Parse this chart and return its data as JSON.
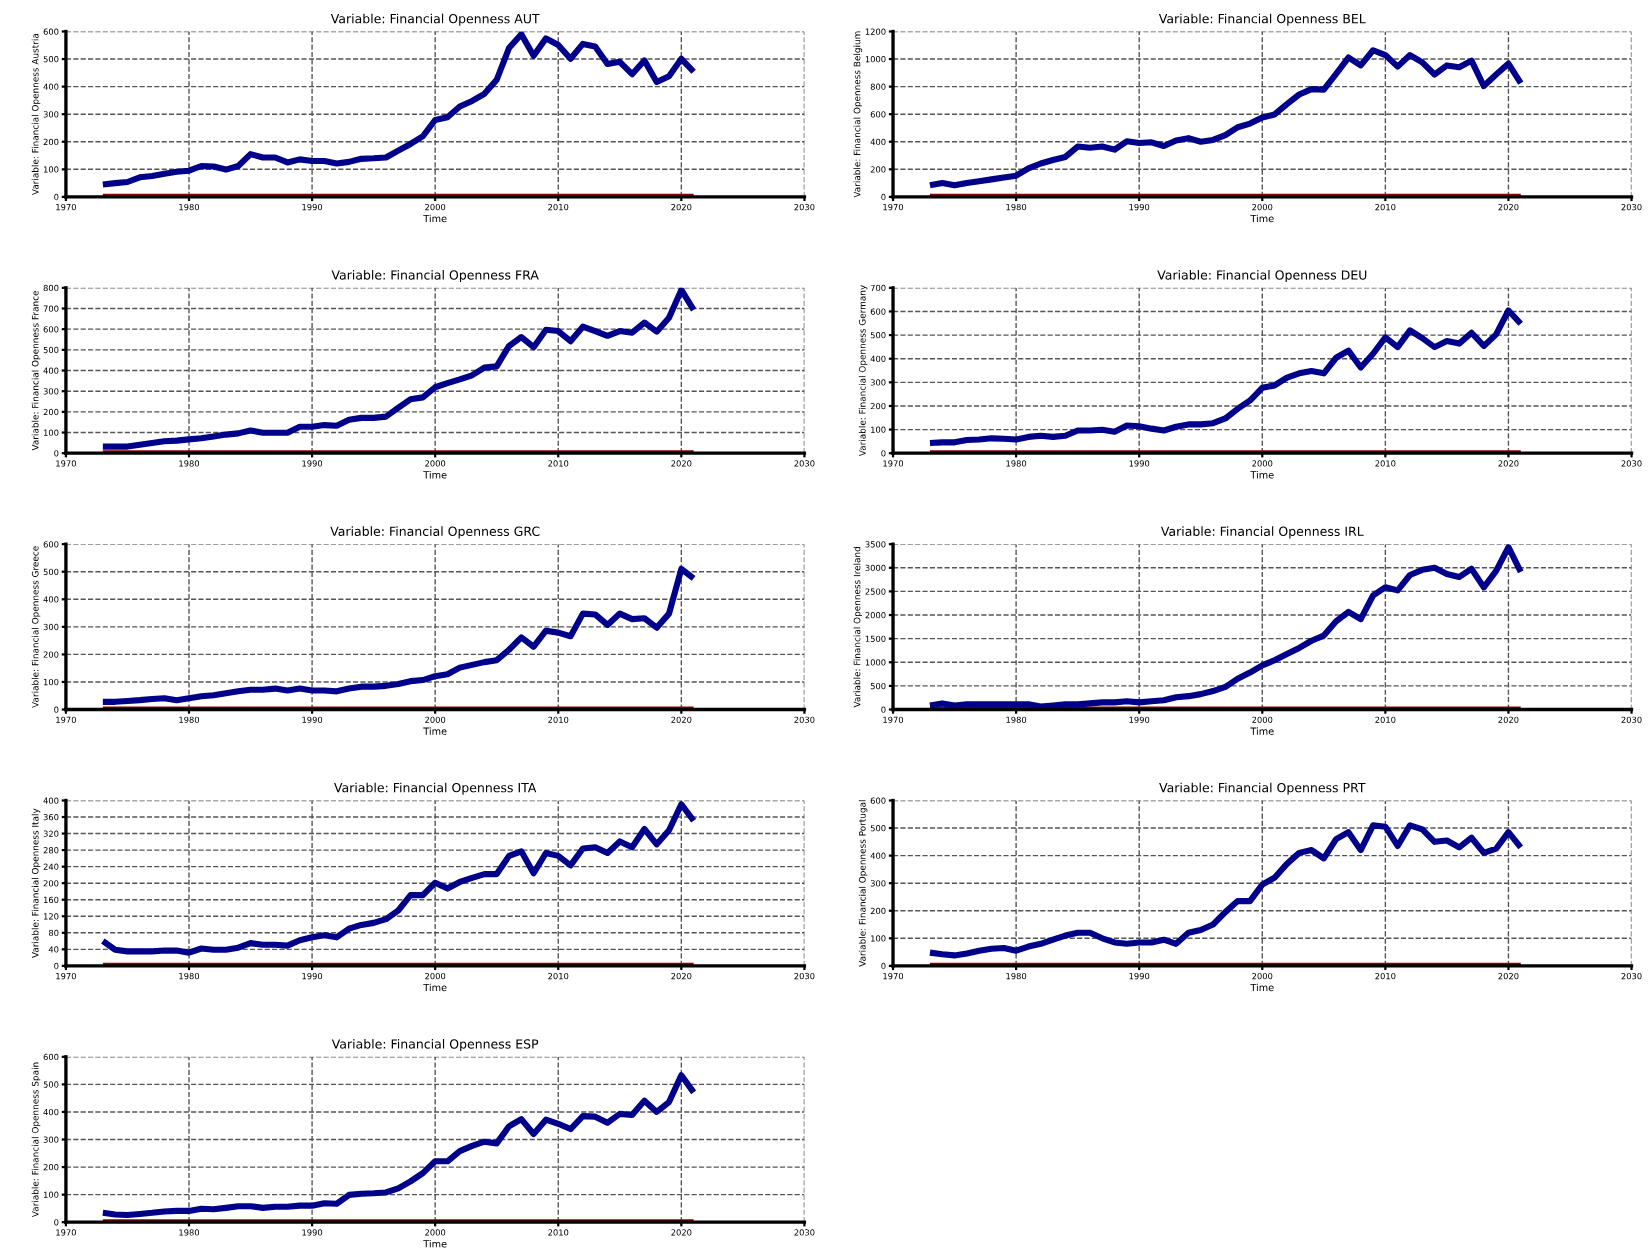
{
  "chart_data": [
    {
      "type": "line",
      "title": "Variable: Financial Openness AUT",
      "xlabel": "Time",
      "ylabel": "Variable: Financial Openness Austria",
      "x": [
        1973,
        1974,
        1975,
        1976,
        1977,
        1978,
        1979,
        1980,
        1981,
        1982,
        1983,
        1984,
        1985,
        1986,
        1987,
        1988,
        1989,
        1990,
        1991,
        1992,
        1993,
        1994,
        1995,
        1996,
        1997,
        1998,
        1999,
        2000,
        2001,
        2002,
        2003,
        2004,
        2005,
        2006,
        2007,
        2008,
        2009,
        2010,
        2011,
        2012,
        2013,
        2014,
        2015,
        2016,
        2017,
        2018,
        2019,
        2020,
        2021
      ],
      "xlim": [
        1970,
        2030
      ],
      "xticks": [
        1970,
        1980,
        1990,
        2000,
        2010,
        2020,
        2030
      ],
      "ylim": [
        0,
        600
      ],
      "yticks": [
        0,
        100,
        200,
        300,
        400,
        500,
        600
      ],
      "grid": true,
      "series": [
        {
          "color": "#8b0000",
          "values": [
            0,
            0,
            0,
            0,
            0,
            0,
            0,
            0,
            0,
            0,
            0,
            0,
            0,
            0,
            0,
            0,
            0,
            0,
            0,
            0,
            0,
            0,
            0,
            0,
            0,
            0,
            0,
            0,
            0,
            0,
            0,
            0,
            0,
            0,
            0,
            0,
            0,
            0,
            0,
            0,
            0,
            0,
            0,
            0,
            0,
            0,
            0,
            0,
            0
          ]
        },
        {
          "color": "#00008b",
          "values": [
            45,
            50,
            54,
            71,
            76,
            84,
            91,
            95,
            112,
            110,
            99,
            112,
            155,
            143,
            143,
            125,
            136,
            130,
            130,
            121,
            127,
            138,
            140,
            143,
            168,
            192,
            220,
            279,
            289,
            328,
            348,
            374,
            425,
            540,
            590,
            512,
            575,
            551,
            501,
            555,
            546,
            482,
            490,
            445,
            495,
            417,
            438,
            501,
            454
          ]
        }
      ]
    },
    {
      "type": "line",
      "title": "Variable: Financial Openness BEL",
      "xlabel": "Time",
      "ylabel": "Variable: Financial Openness Belgium",
      "x": [
        1973,
        1974,
        1975,
        1976,
        1977,
        1978,
        1979,
        1980,
        1981,
        1982,
        1983,
        1984,
        1985,
        1986,
        1987,
        1988,
        1989,
        1990,
        1991,
        1992,
        1993,
        1994,
        1995,
        1996,
        1997,
        1998,
        1999,
        2000,
        2001,
        2002,
        2003,
        2004,
        2005,
        2006,
        2007,
        2008,
        2009,
        2010,
        2011,
        2012,
        2013,
        2014,
        2015,
        2016,
        2017,
        2018,
        2019,
        2020,
        2021
      ],
      "xlim": [
        1970,
        2030
      ],
      "xticks": [
        1970,
        1980,
        1990,
        2000,
        2010,
        2020,
        2030
      ],
      "ylim": [
        0,
        1200
      ],
      "yticks": [
        0,
        200,
        400,
        600,
        800,
        1000,
        1200
      ],
      "grid": true,
      "series": [
        {
          "color": "#8b0000",
          "values": [
            0,
            0,
            0,
            0,
            0,
            0,
            0,
            0,
            0,
            0,
            0,
            0,
            0,
            0,
            0,
            0,
            0,
            0,
            0,
            0,
            0,
            0,
            0,
            0,
            0,
            0,
            0,
            0,
            0,
            0,
            0,
            0,
            0,
            0,
            0,
            0,
            0,
            0,
            0,
            0,
            0,
            0,
            0,
            0,
            0,
            0,
            0,
            0,
            0
          ]
        },
        {
          "color": "#00008b",
          "values": [
            84,
            101,
            84,
            101,
            114,
            127,
            141,
            154,
            207,
            242,
            268,
            290,
            365,
            356,
            365,
            343,
            404,
            391,
            396,
            369,
            409,
            426,
            400,
            413,
            448,
            505,
            532,
            576,
            598,
            673,
            743,
            782,
            778,
            892,
            1011,
            954,
            1064,
            1029,
            945,
            1029,
            976,
            888,
            954,
            941,
            989,
            804,
            888,
            967,
            826
          ]
        }
      ]
    },
    {
      "type": "line",
      "title": "Variable: Financial Openness FRA",
      "xlabel": "Time",
      "ylabel": "Variable: Financial Openness France",
      "x": [
        1973,
        1974,
        1975,
        1976,
        1977,
        1978,
        1979,
        1980,
        1981,
        1982,
        1983,
        1984,
        1985,
        1986,
        1987,
        1988,
        1989,
        1990,
        1991,
        1992,
        1993,
        1994,
        1995,
        1996,
        1997,
        1998,
        1999,
        2000,
        2001,
        2002,
        2003,
        2004,
        2005,
        2006,
        2007,
        2008,
        2009,
        2010,
        2011,
        2012,
        2013,
        2014,
        2015,
        2016,
        2017,
        2018,
        2019,
        2020,
        2021
      ],
      "xlim": [
        1970,
        2030
      ],
      "xticks": [
        1970,
        1980,
        1990,
        2000,
        2010,
        2020,
        2030
      ],
      "ylim": [
        0,
        800
      ],
      "yticks": [
        0,
        100,
        200,
        300,
        400,
        500,
        600,
        700,
        800
      ],
      "grid": true,
      "series": [
        {
          "color": "#8b0000",
          "values": [
            0,
            0,
            0,
            0,
            0,
            0,
            0,
            0,
            0,
            0,
            0,
            0,
            0,
            0,
            0,
            0,
            0,
            0,
            0,
            0,
            0,
            0,
            0,
            0,
            0,
            0,
            0,
            0,
            0,
            0,
            0,
            0,
            0,
            0,
            0,
            0,
            0,
            0,
            0,
            0,
            0,
            0,
            0,
            0,
            0,
            0,
            0,
            0,
            0
          ]
        },
        {
          "color": "#00008b",
          "values": [
            32,
            32,
            32,
            41,
            49,
            58,
            61,
            67,
            72,
            81,
            90,
            96,
            110,
            99,
            99,
            99,
            128,
            128,
            136,
            133,
            162,
            171,
            171,
            177,
            220,
            261,
            270,
            319,
            339,
            357,
            377,
            414,
            420,
            519,
            562,
            513,
            597,
            591,
            542,
            612,
            591,
            568,
            591,
            583,
            632,
            588,
            655,
            790,
            693
          ]
        }
      ]
    },
    {
      "type": "line",
      "title": "Variable: Financial Openness DEU",
      "xlabel": "Time",
      "ylabel": "Variable: Financial Openness Germany",
      "x": [
        1973,
        1974,
        1975,
        1976,
        1977,
        1978,
        1979,
        1980,
        1981,
        1982,
        1983,
        1984,
        1985,
        1986,
        1987,
        1988,
        1989,
        1990,
        1991,
        1992,
        1993,
        1994,
        1995,
        1996,
        1997,
        1998,
        1999,
        2000,
        2001,
        2002,
        2003,
        2004,
        2005,
        2006,
        2007,
        2008,
        2009,
        2010,
        2011,
        2012,
        2013,
        2014,
        2015,
        2016,
        2017,
        2018,
        2019,
        2020,
        2021
      ],
      "xlim": [
        1970,
        2030
      ],
      "xticks": [
        1970,
        1980,
        1990,
        2000,
        2010,
        2020,
        2030
      ],
      "ylim": [
        0,
        700
      ],
      "yticks": [
        0,
        100,
        200,
        300,
        400,
        500,
        600,
        700
      ],
      "grid": true,
      "series": [
        {
          "color": "#8b0000",
          "values": [
            0,
            0,
            0,
            0,
            0,
            0,
            0,
            0,
            0,
            0,
            0,
            0,
            0,
            0,
            0,
            0,
            0,
            0,
            0,
            0,
            0,
            0,
            0,
            0,
            0,
            0,
            0,
            0,
            0,
            0,
            0,
            0,
            0,
            0,
            0,
            0,
            0,
            0,
            0,
            0,
            0,
            0,
            0,
            0,
            0,
            0,
            0,
            0,
            0
          ]
        },
        {
          "color": "#00008b",
          "values": [
            43,
            46,
            46,
            56,
            58,
            63,
            61,
            58,
            69,
            74,
            69,
            74,
            96,
            96,
            99,
            91,
            117,
            114,
            104,
            96,
            112,
            122,
            122,
            127,
            147,
            188,
            223,
            277,
            287,
            320,
            338,
            348,
            338,
            404,
            434,
            363,
            421,
            490,
            449,
            520,
            487,
            449,
            475,
            464,
            510,
            454,
            503,
            604,
            548
          ]
        }
      ]
    },
    {
      "type": "line",
      "title": "Variable: Financial Openness GRC",
      "xlabel": "Time",
      "ylabel": "Variable: Financial Openness Greece",
      "x": [
        1973,
        1974,
        1975,
        1976,
        1977,
        1978,
        1979,
        1980,
        1981,
        1982,
        1983,
        1984,
        1985,
        1986,
        1987,
        1988,
        1989,
        1990,
        1991,
        1992,
        1993,
        1994,
        1995,
        1996,
        1997,
        1998,
        1999,
        2000,
        2001,
        2002,
        2003,
        2004,
        2005,
        2006,
        2007,
        2008,
        2009,
        2010,
        2011,
        2012,
        2013,
        2014,
        2015,
        2016,
        2017,
        2018,
        2019,
        2020,
        2021
      ],
      "xlim": [
        1970,
        2030
      ],
      "xticks": [
        1970,
        1980,
        1990,
        2000,
        2010,
        2020,
        2030
      ],
      "ylim": [
        0,
        600
      ],
      "yticks": [
        0,
        100,
        200,
        300,
        400,
        500,
        600
      ],
      "grid": true,
      "series": [
        {
          "color": "#8b0000",
          "values": [
            0,
            0,
            0,
            0,
            0,
            0,
            0,
            0,
            0,
            0,
            0,
            0,
            0,
            0,
            0,
            0,
            0,
            0,
            0,
            0,
            0,
            0,
            0,
            0,
            0,
            0,
            0,
            0,
            0,
            0,
            0,
            0,
            0,
            0,
            0,
            0,
            0,
            0,
            0,
            0,
            0,
            0,
            0,
            0,
            0,
            0,
            0,
            0,
            0
          ]
        },
        {
          "color": "#00008b",
          "values": [
            28,
            28,
            31,
            34,
            38,
            41,
            34,
            41,
            48,
            52,
            59,
            66,
            72,
            72,
            76,
            69,
            76,
            69,
            69,
            66,
            76,
            83,
            83,
            86,
            93,
            103,
            107,
            121,
            128,
            152,
            162,
            172,
            179,
            217,
            262,
            228,
            286,
            279,
            266,
            348,
            345,
            307,
            348,
            328,
            331,
            297,
            348,
            510,
            476
          ]
        }
      ]
    },
    {
      "type": "line",
      "title": "Variable: Financial Openness IRL",
      "xlabel": "Time",
      "ylabel": "Variable: Financial Openness Ireland",
      "x": [
        1973,
        1974,
        1975,
        1976,
        1977,
        1978,
        1979,
        1980,
        1981,
        1982,
        1983,
        1984,
        1985,
        1986,
        1987,
        1988,
        1989,
        1990,
        1991,
        1992,
        1993,
        1994,
        1995,
        1996,
        1997,
        1998,
        1999,
        2000,
        2001,
        2002,
        2003,
        2004,
        2005,
        2006,
        2007,
        2008,
        2009,
        2010,
        2011,
        2012,
        2013,
        2014,
        2015,
        2016,
        2017,
        2018,
        2019,
        2020,
        2021
      ],
      "xlim": [
        1970,
        2030
      ],
      "xticks": [
        1970,
        1980,
        1990,
        2000,
        2010,
        2020,
        2030
      ],
      "ylim": [
        0,
        3500
      ],
      "yticks": [
        0,
        500,
        1000,
        1500,
        2000,
        2500,
        3000,
        3500
      ],
      "grid": true,
      "series": [
        {
          "color": "#8b0000",
          "values": [
            0,
            0,
            0,
            0,
            0,
            0,
            0,
            0,
            0,
            0,
            0,
            0,
            0,
            0,
            0,
            0,
            0,
            0,
            0,
            0,
            0,
            0,
            0,
            0,
            0,
            0,
            0,
            0,
            0,
            0,
            0,
            0,
            0,
            0,
            0,
            0,
            0,
            0,
            0,
            0,
            0,
            0,
            0,
            0,
            0,
            0,
            0,
            0,
            0
          ]
        },
        {
          "color": "#00008b",
          "values": [
            87,
            130,
            87,
            109,
            109,
            109,
            109,
            109,
            109,
            65,
            87,
            109,
            109,
            130,
            152,
            152,
            174,
            152,
            174,
            196,
            261,
            283,
            326,
            391,
            478,
            652,
            783,
            935,
            1043,
            1174,
            1304,
            1456,
            1565,
            1870,
            2065,
            1913,
            2413,
            2587,
            2522,
            2848,
            2957,
            3000,
            2870,
            2804,
            2978,
            2587,
            2935,
            3435,
            2913
          ]
        }
      ]
    },
    {
      "type": "line",
      "title": "Variable: Financial Openness ITA",
      "xlabel": "Time",
      "ylabel": "Variable: Financial Openness Italy",
      "x": [
        1973,
        1974,
        1975,
        1976,
        1977,
        1978,
        1979,
        1980,
        1981,
        1982,
        1983,
        1984,
        1985,
        1986,
        1987,
        1988,
        1989,
        1990,
        1991,
        1992,
        1993,
        1994,
        1995,
        1996,
        1997,
        1998,
        1999,
        2000,
        2001,
        2002,
        2003,
        2004,
        2005,
        2006,
        2007,
        2008,
        2009,
        2010,
        2011,
        2012,
        2013,
        2014,
        2015,
        2016,
        2017,
        2018,
        2019,
        2020,
        2021
      ],
      "xlim": [
        1970,
        2030
      ],
      "xticks": [
        1970,
        1980,
        1990,
        2000,
        2010,
        2020,
        2030
      ],
      "ylim": [
        0,
        400
      ],
      "yticks": [
        0,
        40,
        80,
        120,
        160,
        200,
        240,
        280,
        320,
        360,
        400
      ],
      "grid": true,
      "series": [
        {
          "color": "#8b0000",
          "values": [
            0,
            0,
            0,
            0,
            0,
            0,
            0,
            0,
            0,
            0,
            0,
            0,
            0,
            0,
            0,
            0,
            0,
            0,
            0,
            0,
            0,
            0,
            0,
            0,
            0,
            0,
            0,
            0,
            0,
            0,
            0,
            0,
            0,
            0,
            0,
            0,
            0,
            0,
            0,
            0,
            0,
            0,
            0,
            0,
            0,
            0,
            0,
            0,
            0
          ]
        },
        {
          "color": "#00008b",
          "values": [
            60,
            39,
            35,
            35,
            35,
            37,
            37,
            32,
            42,
            39,
            39,
            44,
            55,
            51,
            51,
            49,
            62,
            69,
            74,
            69,
            90,
            99,
            104,
            113,
            134,
            171,
            171,
            201,
            187,
            203,
            213,
            222,
            222,
            266,
            277,
            224,
            273,
            266,
            243,
            284,
            287,
            273,
            301,
            287,
            331,
            294,
            328,
            391,
            351
          ]
        }
      ]
    },
    {
      "type": "line",
      "title": "Variable: Financial Openness PRT",
      "xlabel": "Time",
      "ylabel": "Variable: Financial Openness Portugal",
      "x": [
        1973,
        1974,
        1975,
        1976,
        1977,
        1978,
        1979,
        1980,
        1981,
        1982,
        1983,
        1984,
        1985,
        1986,
        1987,
        1988,
        1989,
        1990,
        1991,
        1992,
        1993,
        1994,
        1995,
        1996,
        1997,
        1998,
        1999,
        2000,
        2001,
        2002,
        2003,
        2004,
        2005,
        2006,
        2007,
        2008,
        2009,
        2010,
        2011,
        2012,
        2013,
        2014,
        2015,
        2016,
        2017,
        2018,
        2019,
        2020,
        2021
      ],
      "xlim": [
        1970,
        2030
      ],
      "xticks": [
        1970,
        1980,
        1990,
        2000,
        2010,
        2020,
        2030
      ],
      "ylim": [
        0,
        600
      ],
      "yticks": [
        0,
        100,
        200,
        300,
        400,
        500,
        600
      ],
      "grid": true,
      "series": [
        {
          "color": "#8b0000",
          "values": [
            0,
            0,
            0,
            0,
            0,
            0,
            0,
            0,
            0,
            0,
            0,
            0,
            0,
            0,
            0,
            0,
            0,
            0,
            0,
            0,
            0,
            0,
            0,
            0,
            0,
            0,
            0,
            0,
            0,
            0,
            0,
            0,
            0,
            0,
            0,
            0,
            0,
            0,
            0,
            0,
            0,
            0,
            0,
            0,
            0,
            0,
            0,
            0,
            0
          ]
        },
        {
          "color": "#00008b",
          "values": [
            48,
            42,
            38,
            45,
            55,
            62,
            65,
            55,
            70,
            80,
            95,
            110,
            120,
            120,
            100,
            85,
            80,
            85,
            85,
            95,
            80,
            120,
            130,
            150,
            195,
            235,
            235,
            295,
            320,
            370,
            410,
            420,
            390,
            460,
            485,
            420,
            510,
            505,
            435,
            510,
            495,
            450,
            455,
            430,
            465,
            410,
            425,
            485,
            430
          ]
        }
      ]
    },
    {
      "type": "line",
      "title": "Variable: Financial Openness ESP",
      "xlabel": "Time",
      "ylabel": "Variable: Financial Openness Spain",
      "x": [
        1973,
        1974,
        1975,
        1976,
        1977,
        1978,
        1979,
        1980,
        1981,
        1982,
        1983,
        1984,
        1985,
        1986,
        1987,
        1988,
        1989,
        1990,
        1991,
        1992,
        1993,
        1994,
        1995,
        1996,
        1997,
        1998,
        1999,
        2000,
        2001,
        2002,
        2003,
        2004,
        2005,
        2006,
        2007,
        2008,
        2009,
        2010,
        2011,
        2012,
        2013,
        2014,
        2015,
        2016,
        2017,
        2018,
        2019,
        2020,
        2021
      ],
      "xlim": [
        1970,
        2030
      ],
      "xticks": [
        1970,
        1980,
        1990,
        2000,
        2010,
        2020,
        2030
      ],
      "ylim": [
        0,
        600
      ],
      "yticks": [
        0,
        100,
        200,
        300,
        400,
        500,
        600
      ],
      "grid": true,
      "series": [
        {
          "color": "#8b0000",
          "values": [
            0,
            0,
            0,
            0,
            0,
            0,
            0,
            0,
            0,
            0,
            0,
            0,
            0,
            0,
            0,
            0,
            0,
            0,
            0,
            0,
            0,
            0,
            0,
            0,
            0,
            0,
            0,
            0,
            0,
            0,
            0,
            0,
            0,
            0,
            0,
            0,
            0,
            0,
            0,
            0,
            0,
            0,
            0,
            0,
            0,
            0,
            0,
            0,
            0
          ]
        },
        {
          "color": "#00008b",
          "values": [
            34,
            28,
            26,
            30,
            34,
            39,
            41,
            41,
            49,
            47,
            52,
            58,
            58,
            52,
            56,
            56,
            60,
            60,
            69,
            67,
            99,
            103,
            105,
            108,
            123,
            148,
            178,
            221,
            221,
            258,
            277,
            292,
            286,
            348,
            374,
            320,
            372,
            357,
            338,
            385,
            383,
            361,
            393,
            389,
            441,
            400,
            436,
            533,
            471
          ]
        }
      ]
    }
  ]
}
